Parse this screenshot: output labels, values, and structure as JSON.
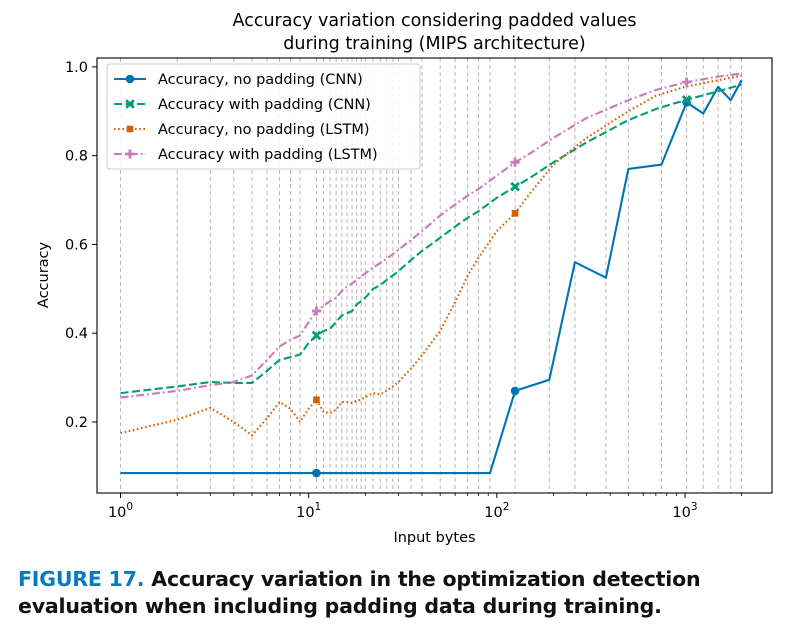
{
  "chart_data": {
    "type": "line",
    "title": "Accuracy variation considering padded values\nduring training (MIPS architecture)",
    "xlabel": "Input bytes",
    "ylabel": "Accuracy",
    "xscale": "log",
    "xlim": [
      0.75,
      2900
    ],
    "ylim": [
      0.04,
      1.02
    ],
    "yticks": [
      0.2,
      0.4,
      0.6,
      0.8,
      1.0
    ],
    "ytick_labels": [
      "0.2",
      "0.4",
      "0.6",
      "0.8",
      "1.0"
    ],
    "xticks": [
      1,
      10,
      100,
      1000
    ],
    "xtick_labels": [
      "10^0",
      "10^1",
      "10^2",
      "10^3"
    ],
    "grid": "vertical dashed at x-sample positions",
    "legend_position": "top-left",
    "series": [
      {
        "name": "Accuracy, no padding (CNN)",
        "color": "#0173b2",
        "dash": "solid",
        "marker": "circle",
        "x": [
          1,
          11,
          92,
          125,
          190,
          260,
          380,
          500,
          750,
          1020,
          1250,
          1500,
          1750,
          2000
        ],
        "y": [
          0.085,
          0.085,
          0.085,
          0.27,
          0.295,
          0.56,
          0.525,
          0.77,
          0.78,
          0.92,
          0.895,
          0.955,
          0.925,
          0.97
        ],
        "marker_x": [
          11,
          125,
          1020
        ]
      },
      {
        "name": "Accuracy with padding (CNN)",
        "color": "#029e73",
        "dash": "dashed",
        "marker": "x",
        "x": [
          1,
          2,
          3,
          4,
          5,
          6,
          7,
          8,
          9,
          10,
          11,
          12,
          13,
          14,
          15,
          16,
          17,
          18,
          19,
          20,
          22,
          24,
          26,
          28,
          30,
          35,
          40,
          50,
          60,
          70,
          80,
          100,
          125,
          150,
          200,
          300,
          500,
          700,
          1000,
          1500,
          2000
        ],
        "y": [
          0.265,
          0.28,
          0.29,
          0.288,
          0.288,
          0.315,
          0.34,
          0.346,
          0.352,
          0.378,
          0.395,
          0.405,
          0.41,
          0.425,
          0.44,
          0.445,
          0.45,
          0.465,
          0.472,
          0.48,
          0.5,
          0.508,
          0.52,
          0.53,
          0.54,
          0.565,
          0.585,
          0.615,
          0.64,
          0.66,
          0.675,
          0.705,
          0.73,
          0.75,
          0.785,
          0.83,
          0.88,
          0.905,
          0.925,
          0.945,
          0.96
        ],
        "marker_x": [
          11,
          125,
          1020
        ]
      },
      {
        "name": "Accuracy, no padding (LSTM)",
        "color": "#d55e00",
        "dash": "dotted",
        "marker": "square",
        "x": [
          1,
          2,
          3,
          4,
          5,
          6,
          7,
          8,
          9,
          10,
          11,
          12,
          13,
          14,
          15,
          16,
          17,
          18,
          19,
          20,
          22,
          24,
          26,
          28,
          30,
          35,
          40,
          50,
          60,
          70,
          80,
          100,
          125,
          150,
          200,
          300,
          500,
          700,
          1000,
          1500,
          2000
        ],
        "y": [
          0.175,
          0.205,
          0.232,
          0.2,
          0.17,
          0.208,
          0.245,
          0.23,
          0.2,
          0.23,
          0.25,
          0.222,
          0.22,
          0.228,
          0.245,
          0.245,
          0.243,
          0.248,
          0.25,
          0.256,
          0.265,
          0.262,
          0.27,
          0.28,
          0.29,
          0.32,
          0.35,
          0.405,
          0.47,
          0.53,
          0.57,
          0.63,
          0.67,
          0.715,
          0.78,
          0.84,
          0.9,
          0.935,
          0.955,
          0.97,
          0.98
        ],
        "marker_x": [
          11,
          125
        ]
      },
      {
        "name": "Accuracy with padding (LSTM)",
        "color": "#cc78bc",
        "dash": "dashdot",
        "marker": "plus",
        "x": [
          1,
          2,
          3,
          4,
          5,
          6,
          7,
          8,
          9,
          10,
          11,
          12,
          13,
          14,
          15,
          16,
          17,
          18,
          19,
          20,
          22,
          24,
          26,
          28,
          30,
          35,
          40,
          50,
          60,
          70,
          80,
          100,
          125,
          150,
          200,
          300,
          500,
          700,
          1000,
          1500,
          2000
        ],
        "y": [
          0.255,
          0.27,
          0.283,
          0.29,
          0.305,
          0.34,
          0.37,
          0.385,
          0.395,
          0.425,
          0.45,
          0.462,
          0.472,
          0.48,
          0.495,
          0.505,
          0.512,
          0.52,
          0.528,
          0.535,
          0.548,
          0.558,
          0.568,
          0.578,
          0.588,
          0.61,
          0.63,
          0.665,
          0.69,
          0.71,
          0.725,
          0.755,
          0.785,
          0.805,
          0.84,
          0.885,
          0.925,
          0.948,
          0.965,
          0.978,
          0.985
        ],
        "marker_x": [
          11,
          125,
          1020
        ]
      }
    ],
    "grid_x": [
      1,
      2,
      3,
      4,
      5,
      6,
      7,
      8,
      9,
      11,
      12,
      13,
      14,
      15,
      16,
      17,
      18,
      19,
      20,
      22,
      24,
      26,
      28,
      30,
      35,
      40,
      50,
      60,
      70,
      80,
      92,
      125,
      190,
      260,
      380,
      500,
      750,
      1020,
      1250,
      1500,
      1750,
      2000
    ]
  },
  "caption": {
    "figure_label": "FIGURE 17.",
    "text": " Accuracy variation in the optimization detection evaluation when including padding data during training."
  }
}
